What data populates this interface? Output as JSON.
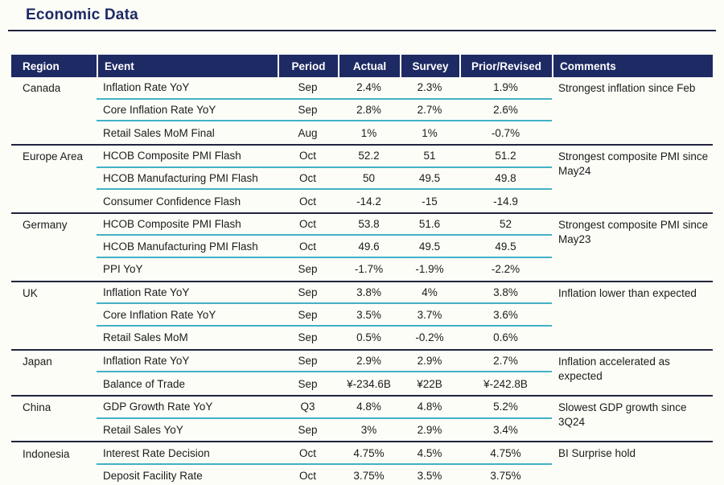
{
  "title": "Economic Data",
  "colors": {
    "navy": "#1e2a63",
    "dark_line": "#20243f",
    "teal": "#41b1c7",
    "page_bg": "#fdfdf8",
    "text": "#1b1b1b"
  },
  "table": {
    "columns": [
      "Region",
      "Event",
      "Period",
      "Actual",
      "Survey",
      "Prior/Revised",
      "Comments"
    ],
    "groups": [
      {
        "region": "Canada",
        "comment": "Strongest inflation since Feb",
        "rows": [
          {
            "event": "Inflation Rate YoY",
            "period": "Sep",
            "actual": "2.4%",
            "survey": "2.3%",
            "prior": "1.9%"
          },
          {
            "event": "Core Inflation Rate YoY",
            "period": "Sep",
            "actual": "2.8%",
            "survey": "2.7%",
            "prior": "2.6%"
          },
          {
            "event": "Retail Sales MoM Final",
            "period": "Aug",
            "actual": "1%",
            "survey": "1%",
            "prior": "-0.7%"
          }
        ]
      },
      {
        "region": "Europe Area",
        "comment": "Strongest composite PMI since May24",
        "rows": [
          {
            "event": "HCOB Composite PMI Flash",
            "period": "Oct",
            "actual": "52.2",
            "survey": "51",
            "prior": "51.2"
          },
          {
            "event": "HCOB Manufacturing PMI Flash",
            "period": "Oct",
            "actual": "50",
            "survey": "49.5",
            "prior": "49.8"
          },
          {
            "event": "Consumer Confidence Flash",
            "period": "Oct",
            "actual": "-14.2",
            "survey": "-15",
            "prior": "-14.9"
          }
        ]
      },
      {
        "region": "Germany",
        "comment": "Strongest composite PMI since May23",
        "rows": [
          {
            "event": "HCOB Composite PMI Flash",
            "period": "Oct",
            "actual": "53.8",
            "survey": "51.6",
            "prior": "52"
          },
          {
            "event": "HCOB Manufacturing PMI Flash",
            "period": "Oct",
            "actual": "49.6",
            "survey": "49.5",
            "prior": "49.5"
          },
          {
            "event": "PPI YoY",
            "period": "Sep",
            "actual": "-1.7%",
            "survey": "-1.9%",
            "prior": "-2.2%"
          }
        ]
      },
      {
        "region": "UK",
        "comment": "Inflation lower than expected",
        "rows": [
          {
            "event": "Inflation Rate YoY",
            "period": "Sep",
            "actual": "3.8%",
            "survey": "4%",
            "prior": "3.8%"
          },
          {
            "event": "Core Inflation Rate YoY",
            "period": "Sep",
            "actual": "3.5%",
            "survey": "3.7%",
            "prior": "3.6%"
          },
          {
            "event": "Retail Sales MoM",
            "period": "Sep",
            "actual": "0.5%",
            "survey": "-0.2%",
            "prior": "0.6%"
          }
        ]
      },
      {
        "region": "Japan",
        "comment": "Inflation accelerated as expected",
        "rows": [
          {
            "event": "Inflation Rate YoY",
            "period": "Sep",
            "actual": "2.9%",
            "survey": "2.9%",
            "prior": "2.7%"
          },
          {
            "event": "Balance of Trade",
            "period": "Sep",
            "actual": "¥-234.6B",
            "survey": "¥22B",
            "prior": "¥-242.8B"
          }
        ]
      },
      {
        "region": "China",
        "comment": "Slowest GDP growth since 3Q24",
        "rows": [
          {
            "event": "GDP Growth Rate YoY",
            "period": "Q3",
            "actual": "4.8%",
            "survey": "4.8%",
            "prior": "5.2%"
          },
          {
            "event": "Retail Sales YoY",
            "period": "Sep",
            "actual": "3%",
            "survey": "2.9%",
            "prior": "3.4%"
          }
        ]
      },
      {
        "region": "Indonesia",
        "comment": "BI Surprise hold",
        "rows": [
          {
            "event": "Interest Rate Decision",
            "period": "Oct",
            "actual": "4.75%",
            "survey": "4.5%",
            "prior": "4.75%"
          },
          {
            "event": "Deposit Facility Rate",
            "period": "Oct",
            "actual": "3.75%",
            "survey": "3.5%",
            "prior": "3.75%"
          }
        ]
      }
    ]
  }
}
